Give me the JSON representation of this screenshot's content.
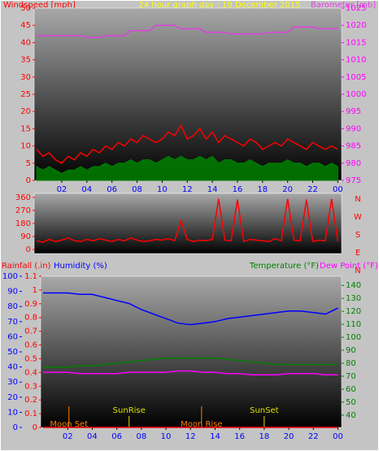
{
  "chart_data": [
    {
      "type": "line",
      "title": "24 hour graph day : 19 December 2015",
      "ylabel": "Windspeed [mph]",
      "x": [
        0,
        0.5,
        1,
        1.5,
        2,
        2.5,
        3,
        3.5,
        4,
        4.5,
        5,
        5.5,
        6,
        6.5,
        7,
        7.5,
        8,
        8.5,
        9,
        9.5,
        10,
        10.5,
        11,
        11.5,
        12,
        12.5,
        13,
        13.5,
        14,
        14.5,
        15,
        15.5,
        16,
        16.5,
        17,
        17.5,
        18,
        18.5,
        19,
        19.5,
        20,
        20.5,
        21,
        21.5,
        22,
        22.5,
        23,
        23.5,
        24
      ],
      "xlim": [
        -0.2,
        24.3
      ],
      "xticks": [
        {
          "value": 2,
          "label": "02"
        },
        {
          "value": 4,
          "label": "04"
        },
        {
          "value": 6,
          "label": "06"
        },
        {
          "value": 8,
          "label": "08"
        },
        10,
        12,
        14,
        16,
        18,
        20,
        22,
        {
          "value": 24,
          "label": "00"
        }
      ],
      "ylim": [
        0,
        50
      ],
      "yticks": [
        0,
        5,
        10,
        15,
        20,
        25,
        30,
        35,
        40,
        45,
        50
      ],
      "y2lim": [
        975,
        1025
      ],
      "y2ticks": [
        975,
        980,
        985,
        990,
        995,
        1000,
        1005,
        1010,
        1015,
        1020,
        1025
      ],
      "axis_colors": {
        "x": "#0000ff",
        "y": "#ff0000",
        "y2": "#ff00ff"
      },
      "series": [
        {
          "color": "#008000",
          "fill": true,
          "values": [
            4,
            3,
            4,
            3,
            2,
            3,
            3,
            4,
            3,
            4,
            4,
            5,
            4,
            5,
            5,
            6,
            5,
            6,
            6,
            5,
            6,
            7,
            6,
            7,
            6,
            6,
            7,
            6,
            7,
            5,
            6,
            6,
            5,
            5,
            6,
            5,
            4,
            5,
            5,
            5,
            6,
            5,
            5,
            4,
            5,
            5,
            4,
            5,
            4
          ]
        },
        {
          "color": "#ff0000",
          "values": [
            9,
            7,
            8,
            6,
            5,
            7,
            6,
            8,
            7,
            9,
            8,
            10,
            9,
            11,
            10,
            12,
            11,
            13,
            12,
            11,
            12,
            14,
            13,
            16,
            12,
            13,
            15,
            12,
            14,
            11,
            13,
            12,
            11,
            10,
            12,
            11,
            9,
            10,
            11,
            10,
            12,
            11,
            10,
            9,
            11,
            10,
            9,
            10,
            9
          ]
        },
        {
          "name": "Barometer [mb]",
          "color": "#e040e0",
          "axis": "y2",
          "values": [
            1017,
            1017,
            1017,
            1017,
            1017,
            1017,
            1017,
            1017,
            1016.5,
            1016.5,
            1016.5,
            1017,
            1017,
            1017,
            1017,
            1018.5,
            1018.5,
            1018.5,
            1018.5,
            1020,
            1020,
            1020,
            1020,
            1019,
            1019,
            1019,
            1019,
            1018,
            1018,
            1018,
            1018,
            1017.5,
            1017.5,
            1017.5,
            1017.5,
            1017.5,
            1017.5,
            1018,
            1018,
            1018,
            1018,
            1019.5,
            1019.5,
            1019.5,
            1019.5,
            1019,
            1019,
            1019,
            1019
          ]
        }
      ]
    },
    {
      "type": "line",
      "x": [
        0,
        0.5,
        1,
        1.5,
        2,
        2.5,
        3,
        3.5,
        4,
        4.5,
        5,
        5.5,
        6,
        6.5,
        7,
        7.5,
        8,
        8.5,
        9,
        9.5,
        10,
        10.5,
        11,
        11.5,
        12,
        12.5,
        13,
        13.5,
        14,
        14.5,
        15,
        15.5,
        16,
        16.5,
        17,
        17.5,
        18,
        18.5,
        19,
        19.5,
        20,
        20.5,
        21,
        21.5,
        22,
        22.5,
        23,
        23.5,
        24
      ],
      "xlim": [
        -0.2,
        24.3
      ],
      "ylim": [
        -28,
        388
      ],
      "yticks": [
        0,
        90,
        180,
        270,
        360
      ],
      "compass": [
        "N",
        "W",
        "S",
        "E",
        "N"
      ],
      "axis_colors": {
        "y": "#ff0000",
        "compass": "#ff0000"
      },
      "series": [
        {
          "color": "#ff0000",
          "values": [
            60,
            50,
            70,
            55,
            65,
            80,
            60,
            55,
            70,
            60,
            75,
            65,
            55,
            70,
            60,
            80,
            65,
            55,
            60,
            70,
            65,
            75,
            60,
            200,
            70,
            55,
            65,
            60,
            70,
            350,
            65,
            60,
            345,
            55,
            70,
            65,
            60,
            55,
            75,
            60,
            350,
            65,
            60,
            345,
            55,
            65,
            60,
            350,
            55
          ]
        }
      ]
    },
    {
      "type": "line",
      "x": [
        0,
        1,
        2,
        3,
        4,
        5,
        6,
        7,
        8,
        9,
        10,
        11,
        12,
        13,
        14,
        15,
        16,
        17,
        18,
        19,
        20,
        21,
        22,
        23,
        24
      ],
      "xlim": [
        -0.2,
        24.3
      ],
      "xticks": [
        {
          "value": 2,
          "label": "02"
        },
        {
          "value": 4,
          "label": "04"
        },
        {
          "value": 6,
          "label": "06"
        },
        {
          "value": 8,
          "label": "08"
        },
        10,
        12,
        14,
        16,
        18,
        20,
        22,
        {
          "value": 24,
          "label": "00"
        }
      ],
      "ylim": [
        0,
        100
      ],
      "yticks": [
        0,
        10,
        20,
        30,
        40,
        50,
        60,
        70,
        80,
        90,
        100
      ],
      "y3lim": [
        0,
        1.1
      ],
      "y3ticks": [
        0,
        0.1,
        0.2,
        0.3,
        0.4,
        0.5,
        0.6,
        0.7,
        0.8,
        0.9,
        1,
        1.1
      ],
      "y2lim": [
        30.5,
        147
      ],
      "y2ticks": [
        40,
        50,
        60,
        70,
        80,
        90,
        100,
        110,
        120,
        130,
        140
      ],
      "axis_colors": {
        "x": "#0000ff",
        "y": "#0000ff",
        "y3": "#ff0000",
        "y2": "#008000"
      },
      "series": [
        {
          "name": "Rainfall (.in)",
          "color": "#ff0000",
          "axis": "y3",
          "values": [
            0,
            0,
            0,
            0,
            0,
            0,
            0,
            0,
            0,
            0,
            0,
            0,
            0,
            0,
            0,
            0,
            0,
            0,
            0,
            0,
            0,
            0,
            0,
            0,
            0
          ]
        },
        {
          "name": "Humidity (%)",
          "color": "#0000ff",
          "values": [
            89,
            89,
            89,
            88,
            88,
            86,
            84,
            82,
            78,
            75,
            72,
            69,
            68,
            69,
            70,
            72,
            73,
            74,
            75,
            76,
            77,
            77,
            76,
            75,
            79
          ]
        },
        {
          "name": "Temperature (°F)",
          "color": "#008000",
          "axis": "y2",
          "values": [
            77,
            77,
            77,
            78,
            78,
            79,
            80,
            81,
            82,
            83,
            84,
            84,
            84,
            84,
            84,
            83,
            82,
            81,
            80,
            79,
            79,
            79,
            79,
            79,
            79
          ]
        },
        {
          "name": "Dew Point (°F)",
          "color": "#ff00ff",
          "axis": "y2",
          "values": [
            73,
            73,
            73,
            72,
            72,
            72,
            72,
            73,
            73,
            73,
            73,
            74,
            74,
            73,
            73,
            72,
            72,
            71,
            71,
            71,
            72,
            72,
            72,
            71,
            71
          ]
        }
      ],
      "events": [
        {
          "label": "Moon Set",
          "x": 2.1
        },
        {
          "label": "SunRise",
          "x": 7.0
        },
        {
          "label": "Moon Rise",
          "x": 12.9
        },
        {
          "label": "SunSet",
          "x": 18.0
        }
      ]
    }
  ]
}
